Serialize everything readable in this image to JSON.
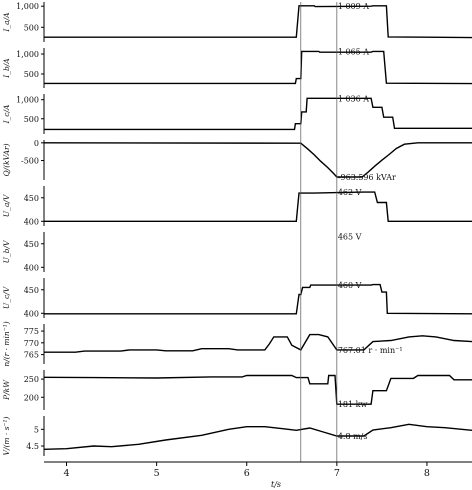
{
  "chart_data": {
    "type": "line",
    "xlabel": "t/s",
    "x_ticks": [
      4,
      5,
      6,
      7,
      8
    ],
    "xlim": [
      3.75,
      8.5
    ],
    "vlines": [
      6.6,
      7.0
    ],
    "panels": [
      {
        "ylabel": "I_a/A",
        "ylim": [
          150,
          1100
        ],
        "yticks": [
          500,
          1000
        ],
        "ytick_labels": [
          "500",
          "1,000"
        ],
        "annotation": {
          "text": "1 009 A",
          "x": 7.0,
          "y": 1009
        },
        "series": [
          {
            "values": [
              [
                3.75,
                265
              ],
              [
                6.55,
                265
              ],
              [
                6.58,
                1009
              ],
              [
                6.75,
                1009
              ],
              [
                6.76,
                990
              ],
              [
                7.0,
                995
              ],
              [
                7.38,
                1000
              ],
              [
                7.4,
                1009
              ],
              [
                7.55,
                1009
              ],
              [
                7.57,
                270
              ],
              [
                8.0,
                265
              ],
              [
                8.5,
                255
              ]
            ]
          }
        ]
      },
      {
        "ylabel": "I_b/A",
        "ylim": [
          150,
          1150
        ],
        "yticks": [
          500,
          1000
        ],
        "ytick_labels": [
          "500",
          "1,000"
        ],
        "annotation": {
          "text": "1 065 A",
          "x": 7.0,
          "y": 1065
        },
        "series": [
          {
            "values": [
              [
                3.75,
                265
              ],
              [
                6.54,
                265
              ],
              [
                6.55,
                385
              ],
              [
                6.6,
                385
              ],
              [
                6.61,
                1065
              ],
              [
                6.8,
                1065
              ],
              [
                6.81,
                1045
              ],
              [
                7.38,
                1045
              ],
              [
                7.4,
                1065
              ],
              [
                7.52,
                1065
              ],
              [
                7.55,
                270
              ],
              [
                8.5,
                260
              ]
            ]
          }
        ]
      },
      {
        "ylabel": "I_c/A",
        "ylim": [
          100,
          1150
        ],
        "yticks": [
          500,
          1000
        ],
        "ytick_labels": [
          "500",
          "1,000"
        ],
        "annotation": {
          "text": "1 036 A",
          "x": 7.0,
          "y": 1036
        },
        "series": [
          {
            "values": [
              [
                3.75,
                220
              ],
              [
                6.53,
                220
              ],
              [
                6.54,
                370
              ],
              [
                6.6,
                370
              ],
              [
                6.61,
                680
              ],
              [
                6.66,
                680
              ],
              [
                6.67,
                1036
              ],
              [
                7.38,
                1036
              ],
              [
                7.4,
                800
              ],
              [
                7.5,
                800
              ],
              [
                7.52,
                540
              ],
              [
                7.62,
                540
              ],
              [
                7.64,
                250
              ],
              [
                7.9,
                250
              ],
              [
                8.5,
                250
              ]
            ]
          }
        ]
      },
      {
        "ylabel": "Q/(kVAr)",
        "ylim": [
          -1050,
          80
        ],
        "yticks": [
          0,
          -500
        ],
        "ytick_labels": [
          "0",
          "-500"
        ],
        "annotation": {
          "text": "-963.596 kVAr",
          "x": 7.0,
          "y": -963.596
        },
        "series": [
          {
            "values": [
              [
                3.75,
                0
              ],
              [
                6.6,
                -10
              ],
              [
                6.68,
                -180
              ],
              [
                6.75,
                -340
              ],
              [
                6.82,
                -520
              ],
              [
                6.9,
                -700
              ],
              [
                6.97,
                -880
              ],
              [
                7.0,
                -964
              ],
              [
                7.28,
                -964
              ],
              [
                7.35,
                -820
              ],
              [
                7.42,
                -660
              ],
              [
                7.5,
                -490
              ],
              [
                7.58,
                -330
              ],
              [
                7.66,
                -160
              ],
              [
                7.75,
                -40
              ],
              [
                7.9,
                0
              ],
              [
                8.5,
                0
              ]
            ]
          }
        ]
      },
      {
        "ylabel": "U_a/V",
        "ylim": [
          390,
          475
        ],
        "yticks": [
          400,
          450
        ],
        "ytick_labels": [
          "400",
          "450"
        ],
        "annotation": {
          "text": "462 V",
          "x": 7.0,
          "y": 462
        },
        "series": [
          {
            "values": [
              [
                3.75,
                400
              ],
              [
                6.55,
                400
              ],
              [
                6.58,
                460
              ],
              [
                6.75,
                460
              ],
              [
                7.0,
                461
              ],
              [
                7.3,
                462
              ],
              [
                7.42,
                462
              ],
              [
                7.45,
                440
              ],
              [
                7.55,
                440
              ],
              [
                7.57,
                400
              ],
              [
                8.5,
                400
              ]
            ]
          }
        ]
      },
      {
        "ylabel": "U_b/V",
        "ylim": [
          390,
          475
        ],
        "yticks": [
          400,
          450
        ],
        "ytick_labels": [
          "400",
          "450"
        ],
        "annotation": {
          "text": "465 V",
          "x": 7.0,
          "y": 465
        },
        "series": []
      },
      {
        "ylabel": "U_c/V",
        "ylim": [
          390,
          475
        ],
        "yticks": [
          400,
          450
        ],
        "ytick_labels": [
          "400",
          "450"
        ],
        "annotation": {
          "text": "460 V",
          "x": 7.0,
          "y": 460
        },
        "series": [
          {
            "values": [
              [
                3.75,
                399
              ],
              [
                6.55,
                399
              ],
              [
                6.58,
                440
              ],
              [
                6.6,
                440
              ],
              [
                6.62,
                455
              ],
              [
                6.7,
                455
              ],
              [
                6.71,
                460
              ],
              [
                7.38,
                460
              ],
              [
                7.4,
                461
              ],
              [
                7.48,
                461
              ],
              [
                7.5,
                445
              ],
              [
                7.55,
                445
              ],
              [
                7.56,
                400
              ],
              [
                8.5,
                399
              ]
            ]
          }
        ]
      },
      {
        "ylabel": "n/(r · min⁻¹)",
        "ylim": [
          761,
          778
        ],
        "yticks": [
          765,
          770,
          775
        ],
        "ytick_labels": [
          "765",
          "770",
          "775"
        ],
        "annotation": {
          "text": "767.01 r · min⁻¹",
          "x": 7.0,
          "y": 767.01
        },
        "series": [
          {
            "values": [
              [
                3.75,
                766
              ],
              [
                4.1,
                766
              ],
              [
                4.2,
                766.5
              ],
              [
                4.6,
                766.5
              ],
              [
                4.7,
                767
              ],
              [
                5.0,
                767
              ],
              [
                5.1,
                766.6
              ],
              [
                5.4,
                766.6
              ],
              [
                5.5,
                767.5
              ],
              [
                5.8,
                767.5
              ],
              [
                5.9,
                767
              ],
              [
                6.2,
                767
              ],
              [
                6.25,
                769.5
              ],
              [
                6.3,
                772.5
              ],
              [
                6.45,
                772.5
              ],
              [
                6.5,
                769
              ],
              [
                6.6,
                767
              ],
              [
                6.7,
                773.5
              ],
              [
                6.8,
                773.5
              ],
              [
                6.9,
                772.5
              ],
              [
                7.0,
                767
              ],
              [
                7.3,
                767
              ],
              [
                7.4,
                770.5
              ],
              [
                7.6,
                771
              ],
              [
                7.8,
                772.5
              ],
              [
                7.95,
                773
              ],
              [
                8.1,
                772.5
              ],
              [
                8.3,
                771
              ],
              [
                8.5,
                770.5
              ]
            ]
          }
        ]
      },
      {
        "ylabel": "P/kW",
        "ylim": [
          165,
          275
        ],
        "yticks": [
          200,
          250
        ],
        "ytick_labels": [
          "200",
          "250"
        ],
        "annotation": {
          "text": "181 kw",
          "x": 7.0,
          "y": 181
        },
        "series": [
          {
            "values": [
              [
                3.75,
                255
              ],
              [
                4.3,
                254
              ],
              [
                5.0,
                253
              ],
              [
                5.6,
                256
              ],
              [
                5.95,
                256
              ],
              [
                6.0,
                260
              ],
              [
                6.5,
                260
              ],
              [
                6.55,
                254
              ],
              [
                6.68,
                254
              ],
              [
                6.7,
                237
              ],
              [
                6.9,
                237
              ],
              [
                6.91,
                260
              ],
              [
                6.98,
                260
              ],
              [
                7.0,
                181
              ],
              [
                7.38,
                181
              ],
              [
                7.4,
                218
              ],
              [
                7.55,
                218
              ],
              [
                7.6,
                252
              ],
              [
                7.85,
                252
              ],
              [
                7.9,
                260
              ],
              [
                8.25,
                260
              ],
              [
                8.3,
                248
              ],
              [
                8.5,
                248
              ]
            ]
          }
        ]
      },
      {
        "ylabel": "V/(m · s⁻¹)",
        "ylim": [
          4.2,
          5.4
        ],
        "yticks": [
          4.5,
          5
        ],
        "ytick_labels": [
          "4.5",
          "5"
        ],
        "annotation": {
          "text": "4.8 m/s",
          "x": 7.0,
          "y": 4.8
        },
        "series": [
          {
            "values": [
              [
                3.75,
                4.4
              ],
              [
                4.0,
                4.42
              ],
              [
                4.3,
                4.5
              ],
              [
                4.5,
                4.48
              ],
              [
                4.8,
                4.55
              ],
              [
                5.1,
                4.68
              ],
              [
                5.5,
                4.82
              ],
              [
                5.8,
                5.0
              ],
              [
                6.0,
                5.08
              ],
              [
                6.2,
                5.08
              ],
              [
                6.4,
                5.02
              ],
              [
                6.55,
                4.97
              ],
              [
                6.7,
                5.04
              ],
              [
                6.85,
                4.92
              ],
              [
                7.0,
                4.8
              ],
              [
                7.3,
                4.8
              ],
              [
                7.4,
                4.98
              ],
              [
                7.6,
                5.05
              ],
              [
                7.8,
                5.15
              ],
              [
                8.0,
                5.08
              ],
              [
                8.2,
                5.05
              ],
              [
                8.5,
                4.97
              ]
            ]
          }
        ]
      }
    ]
  }
}
